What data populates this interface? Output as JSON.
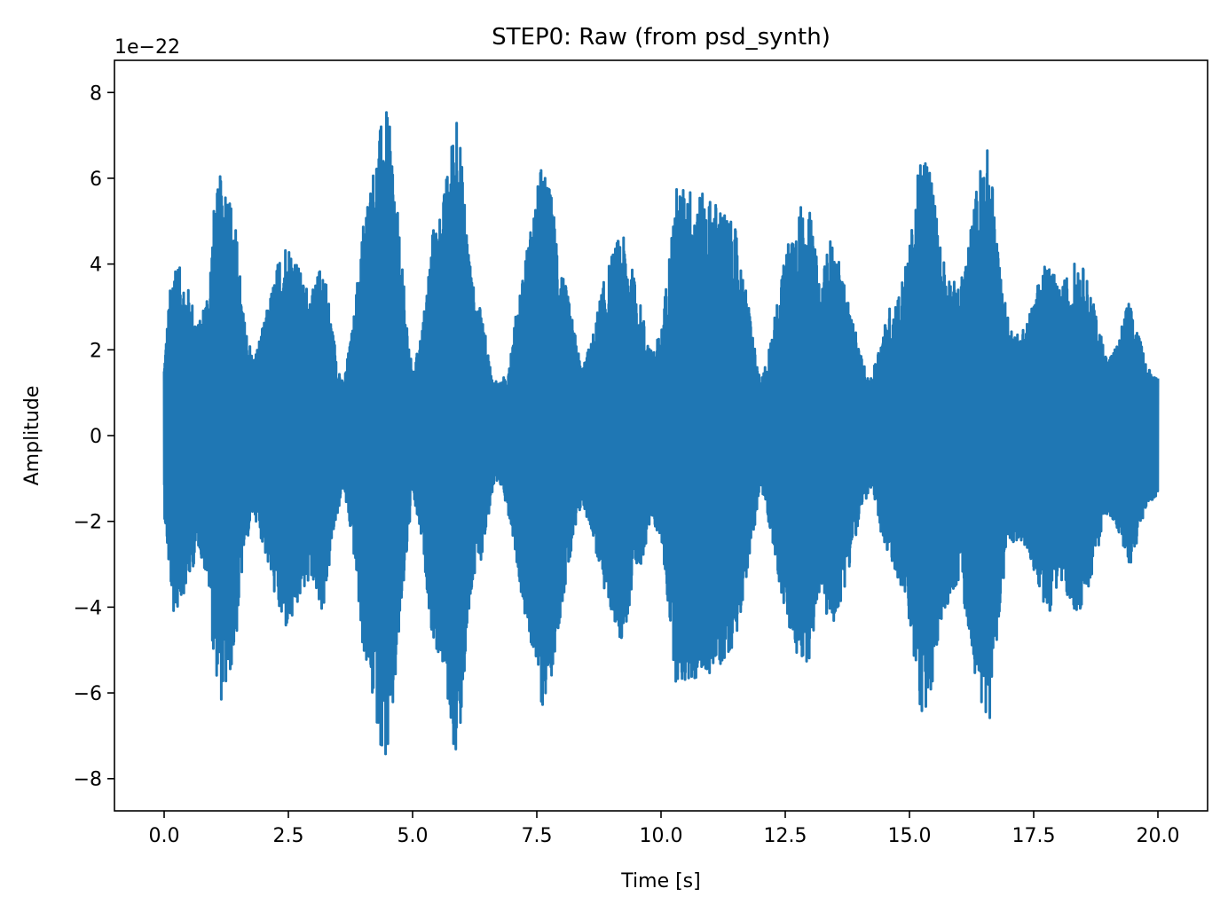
{
  "chart_data": {
    "type": "line",
    "title": "STEP0: Raw (from psd_synth)",
    "xlabel": "Time [s]",
    "ylabel": "Amplitude",
    "y_offset_label": "1e−22",
    "xlim": [
      -1.0,
      21.0
    ],
    "ylim": [
      -8.75,
      8.75
    ],
    "x_ticks": [
      0.0,
      2.5,
      5.0,
      7.5,
      10.0,
      12.5,
      15.0,
      17.5,
      20.0
    ],
    "x_tick_labels": [
      "0.0",
      "2.5",
      "5.0",
      "7.5",
      "10.0",
      "12.5",
      "15.0",
      "17.5",
      "20.0"
    ],
    "y_ticks": [
      -8,
      -6,
      -4,
      -2,
      0,
      2,
      4,
      6,
      8
    ],
    "y_tick_labels": [
      "−8",
      "−6",
      "−4",
      "−2",
      "0",
      "2",
      "4",
      "6",
      "8"
    ],
    "series": [
      {
        "name": "raw",
        "color": "#1f77b4",
        "x_start": 0.0,
        "x_end": 20.0,
        "envelope_t": [
          0.0,
          0.1,
          0.2,
          0.35,
          0.5,
          0.7,
          0.9,
          1.0,
          1.15,
          1.3,
          1.45,
          1.6,
          1.8,
          2.0,
          2.2,
          2.4,
          2.6,
          2.8,
          3.0,
          3.2,
          3.4,
          3.6,
          3.8,
          4.0,
          4.2,
          4.4,
          4.5,
          4.6,
          4.8,
          5.0,
          5.2,
          5.4,
          5.6,
          5.8,
          5.9,
          6.0,
          6.2,
          6.4,
          6.6,
          6.8,
          7.0,
          7.2,
          7.4,
          7.6,
          7.8,
          8.0,
          8.2,
          8.4,
          8.6,
          8.8,
          9.0,
          9.2,
          9.4,
          9.6,
          9.8,
          10.0,
          10.3,
          10.6,
          10.9,
          11.2,
          11.5,
          11.8,
          12.0,
          12.2,
          12.4,
          12.6,
          12.8,
          13.0,
          13.2,
          13.4,
          13.6,
          13.8,
          14.0,
          14.2,
          14.4,
          14.6,
          14.8,
          15.0,
          15.2,
          15.4,
          15.6,
          15.8,
          16.0,
          16.2,
          16.4,
          16.6,
          16.8,
          17.0,
          17.2,
          17.4,
          17.6,
          17.8,
          18.0,
          18.2,
          18.4,
          18.6,
          18.8,
          19.0,
          19.2,
          19.4,
          19.6,
          19.8,
          20.0
        ],
        "envelope_a": [
          1.8,
          3.2,
          4.3,
          3.8,
          3.4,
          2.6,
          3.6,
          5.3,
          6.2,
          5.8,
          4.8,
          2.8,
          1.8,
          2.6,
          3.6,
          4.6,
          4.4,
          3.6,
          3.4,
          4.2,
          2.4,
          1.2,
          2.6,
          5.0,
          6.2,
          7.5,
          7.6,
          6.6,
          3.8,
          1.4,
          2.6,
          4.8,
          5.4,
          7.0,
          8.0,
          6.2,
          3.6,
          2.8,
          1.4,
          1.2,
          2.2,
          3.8,
          5.0,
          6.4,
          5.6,
          4.0,
          2.8,
          1.6,
          2.2,
          3.4,
          4.2,
          4.8,
          4.0,
          3.0,
          2.0,
          2.4,
          5.8,
          5.8,
          5.6,
          5.4,
          4.8,
          2.8,
          1.2,
          2.2,
          3.6,
          4.8,
          5.4,
          5.2,
          3.6,
          4.6,
          4.0,
          3.0,
          2.0,
          1.2,
          2.2,
          3.0,
          3.4,
          4.4,
          6.4,
          6.6,
          4.6,
          3.8,
          3.4,
          4.6,
          6.2,
          6.8,
          4.2,
          2.6,
          2.4,
          2.8,
          3.6,
          4.2,
          3.4,
          3.8,
          4.2,
          3.6,
          2.6,
          1.8,
          2.2,
          3.2,
          2.4,
          1.6,
          1.4
        ]
      }
    ]
  }
}
